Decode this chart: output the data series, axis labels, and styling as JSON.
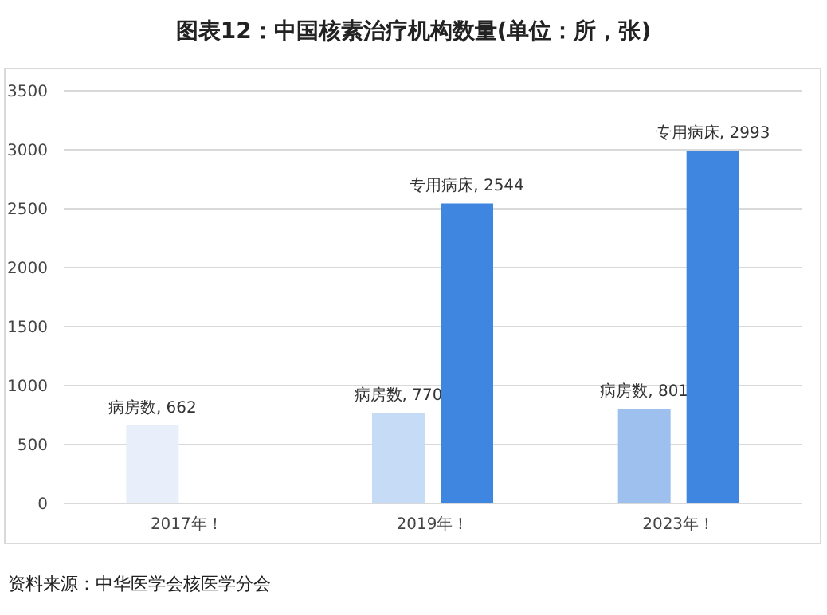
{
  "chart_data": {
    "type": "bar",
    "title": "图表12：中国核素治疗机构数量(单位：所，张)",
    "categories": [
      "2017年！",
      "2019年！",
      "2023年！"
    ],
    "series": [
      {
        "colors": [
          "#e8effb",
          "#c5dbf6",
          "#9dc0ef"
        ],
        "values": [
          662,
          770,
          801
        ],
        "value_labels": [
          "病房数, 662",
          "病房数, 770",
          "病房数, 801"
        ]
      },
      {
        "color": "#3f86e0",
        "values": [
          null,
          2544,
          2993
        ],
        "value_labels": [
          null,
          "专用病床, 2544",
          "专用病床, 2993"
        ]
      }
    ],
    "ylim": [
      0,
      3500
    ],
    "yticks": [
      0,
      500,
      1000,
      1500,
      2000,
      2500,
      3000,
      3500
    ],
    "grid": "y",
    "annotations": [
      "资料来源：中华医学会核医学分会"
    ]
  }
}
